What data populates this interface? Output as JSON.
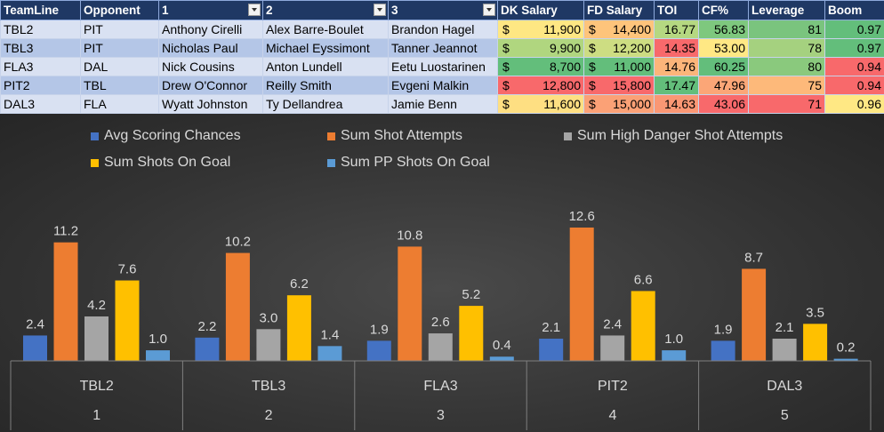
{
  "table": {
    "columns": [
      "TeamLine",
      "Opponent",
      "1",
      "2",
      "3",
      "DK Salary",
      "FD Salary",
      "TOI",
      "CF%",
      "Leverage",
      "Boom"
    ],
    "filter_columns": [
      2,
      3,
      4
    ],
    "currency_symbol": "$",
    "rows": [
      {
        "teamline": "TBL2",
        "opponent": "PIT",
        "p1": "Anthony Cirelli",
        "p2": "Alex Barre-Boulet",
        "p3": "Brandon Hagel",
        "dk": "11,900",
        "fd": "14,400",
        "toi": "16.77",
        "cf": "56.83",
        "leverage": "81",
        "boom": "0.97",
        "colors": {
          "dk": "#fee783",
          "fd": "#fec47b",
          "toi": "#b5d881",
          "cf": "#7ec87e",
          "leverage": "#7ac47e",
          "boom": "#63be7b"
        }
      },
      {
        "teamline": "TBL3",
        "opponent": "PIT",
        "p1": "Nicholas Paul",
        "p2": "Michael Eyssimont",
        "p3": "Tanner Jeannot",
        "dk": "9,900",
        "fd": "12,200",
        "toi": "14.35",
        "cf": "53.00",
        "leverage": "78",
        "boom": "0.97",
        "colors": {
          "dk": "#b0d67f",
          "fd": "#cddd82",
          "toi": "#f8696b",
          "cf": "#ffe884",
          "leverage": "#a5d17f",
          "boom": "#63be7b"
        }
      },
      {
        "teamline": "FLA3",
        "opponent": "DAL",
        "p1": "Nick Cousins",
        "p2": "Anton Lundell",
        "p3": "Eetu Luostarinen",
        "dk": "8,700",
        "fd": "11,000",
        "toi": "14.76",
        "cf": "60.25",
        "leverage": "80",
        "boom": "0.94",
        "colors": {
          "dk": "#63be7b",
          "fd": "#63be7b",
          "toi": "#fcb57a",
          "cf": "#63be7b",
          "leverage": "#8ac97d",
          "boom": "#f8696b"
        }
      },
      {
        "teamline": "PIT2",
        "opponent": "TBL",
        "p1": "Drew O'Connor",
        "p2": "Reilly Smith",
        "p3": "Evgeni Malkin",
        "dk": "12,800",
        "fd": "15,800",
        "toi": "17.47",
        "cf": "47.96",
        "leverage": "75",
        "boom": "0.94",
        "colors": {
          "dk": "#f8696b",
          "fd": "#f8696b",
          "toi": "#63be7b",
          "cf": "#fba677",
          "leverage": "#fdb97a",
          "boom": "#f8696b"
        }
      },
      {
        "teamline": "DAL3",
        "opponent": "FLA",
        "p1": "Wyatt Johnston",
        "p2": "Ty Dellandrea",
        "p3": "Jamie Benn",
        "dk": "11,600",
        "fd": "15,000",
        "toi": "14.63",
        "cf": "43.06",
        "leverage": "71",
        "boom": "0.96",
        "colors": {
          "dk": "#fedf82",
          "fd": "#fba176",
          "toi": "#fa9774",
          "cf": "#f8696b",
          "leverage": "#f8696b",
          "boom": "#ffe884"
        }
      }
    ]
  },
  "chart_data": {
    "type": "bar",
    "categories": [
      "TBL2",
      "TBL3",
      "FLA3",
      "PIT2",
      "DAL3"
    ],
    "category_numbers": [
      "1",
      "2",
      "3",
      "4",
      "5"
    ],
    "ylim": [
      0,
      14
    ],
    "series": [
      {
        "name": "Avg Scoring Chances",
        "values": [
          2.4,
          2.2,
          1.9,
          2.1,
          1.9
        ],
        "labels": [
          "2.4",
          "2.2",
          "1.9",
          "2.1",
          "1.9"
        ],
        "color": "#4472c4"
      },
      {
        "name": "Sum Shot Attempts",
        "values": [
          11.2,
          10.2,
          10.8,
          12.6,
          8.7
        ],
        "labels": [
          "11.2",
          "10.2",
          "10.8",
          "12.6",
          "8.7"
        ],
        "color": "#ed7d31"
      },
      {
        "name": "Sum High Danger Shot Attempts",
        "values": [
          4.2,
          3.0,
          2.6,
          2.4,
          2.1
        ],
        "labels": [
          "4.2",
          "3.0",
          "2.6",
          "2.4",
          "2.1"
        ],
        "color": "#a5a5a5"
      },
      {
        "name": "Sum Shots On Goal",
        "values": [
          7.6,
          6.2,
          5.2,
          6.6,
          3.5
        ],
        "labels": [
          "7.6",
          "6.2",
          "5.2",
          "6.6",
          "3.5"
        ],
        "color": "#ffc000"
      },
      {
        "name": "Sum PP Shots On Goal",
        "values": [
          1.0,
          1.4,
          0.4,
          1.0,
          0.2
        ],
        "labels": [
          "1.0",
          "1.4",
          "0.4",
          "1.0",
          "0.2"
        ],
        "color": "#5b9bd5"
      }
    ],
    "legend_position": "top",
    "grid": false
  }
}
